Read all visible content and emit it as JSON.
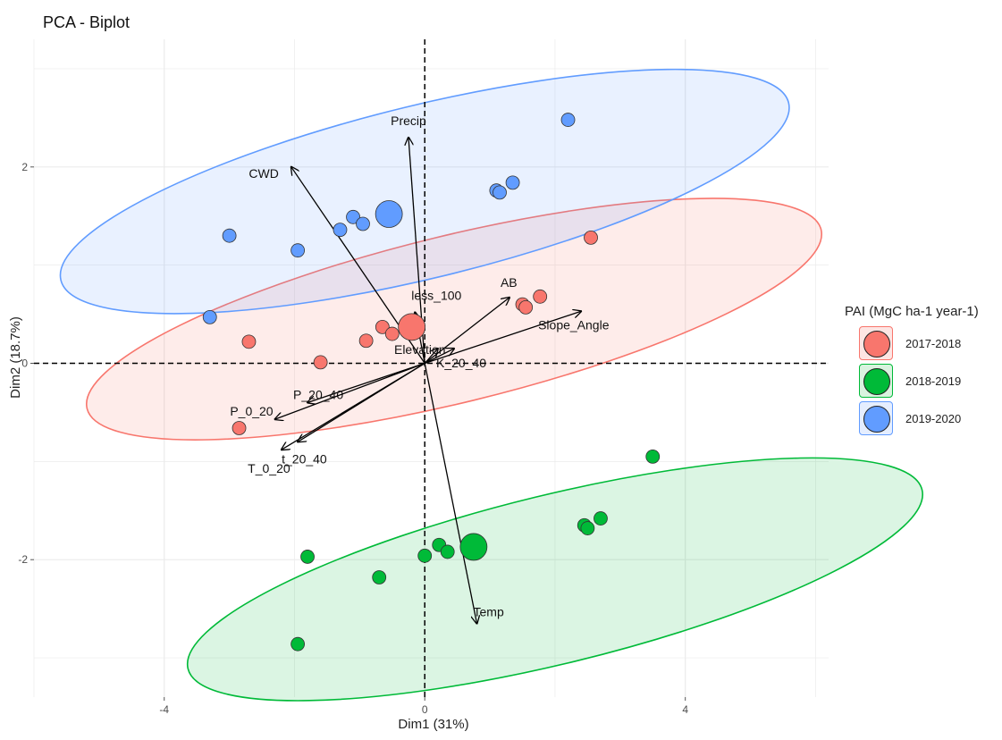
{
  "chart_data": {
    "type": "scatter",
    "title": "PCA - Biplot",
    "xlabel": "Dim1 (31%)",
    "ylabel": "Dim2 (18.7%)",
    "xlim": [
      -6.0,
      6.2
    ],
    "ylim": [
      -3.4,
      3.3
    ],
    "xticks": [
      -4,
      0,
      4
    ],
    "yticks": [
      -2,
      0,
      2
    ],
    "grid": true,
    "legend": {
      "title": "PAI (MgC ha-1 year-1)",
      "position": "right",
      "entries": [
        "2017-2018",
        "2018-2019",
        "2019-2020"
      ]
    },
    "colors": {
      "2017-2018": "#F8766D",
      "2018-2019": "#00BA38",
      "2019-2020": "#619CFF"
    },
    "series": [
      {
        "name": "2017-2018",
        "points": [
          [
            -2.7,
            0.22
          ],
          [
            -1.6,
            0.01
          ],
          [
            -0.9,
            0.23
          ],
          [
            -0.65,
            0.37
          ],
          [
            -0.5,
            0.3
          ],
          [
            -0.2,
            0.36
          ],
          [
            1.5,
            0.6
          ],
          [
            1.55,
            0.57
          ],
          [
            1.77,
            0.68
          ],
          [
            2.55,
            1.28
          ],
          [
            -2.85,
            -0.66
          ]
        ],
        "centroid": [
          -0.2,
          0.37
        ],
        "ellipse": {
          "center": [
            0.45,
            0.45
          ],
          "rx": 5.8,
          "ry": 0.85,
          "angle_deg": 13.7
        }
      },
      {
        "name": "2018-2019",
        "points": [
          [
            -1.8,
            -1.97
          ],
          [
            -0.7,
            -2.18
          ],
          [
            0.0,
            -1.96
          ],
          [
            0.22,
            -1.85
          ],
          [
            0.35,
            -1.92
          ],
          [
            2.45,
            -1.65
          ],
          [
            2.5,
            -1.68
          ],
          [
            2.7,
            -1.58
          ],
          [
            3.5,
            -0.95
          ],
          [
            -1.95,
            -2.86
          ]
        ],
        "centroid": [
          0.75,
          -1.87
        ],
        "ellipse": {
          "center": [
            2.0,
            -2.2
          ],
          "rx": 5.8,
          "ry": 0.86,
          "angle_deg": 13.7
        }
      },
      {
        "name": "2019-2020",
        "points": [
          [
            -3.0,
            1.3
          ],
          [
            -1.95,
            1.15
          ],
          [
            -1.3,
            1.36
          ],
          [
            -1.1,
            1.49
          ],
          [
            -0.95,
            1.42
          ],
          [
            1.1,
            1.76
          ],
          [
            1.15,
            1.74
          ],
          [
            1.35,
            1.84
          ],
          [
            2.2,
            2.48
          ],
          [
            -3.3,
            0.47
          ]
        ],
        "centroid": [
          -0.55,
          1.52
        ],
        "ellipse": {
          "center": [
            0.0,
            1.75
          ],
          "rx": 5.75,
          "ry": 0.88,
          "angle_deg": 13.7
        }
      }
    ],
    "variables": [
      {
        "name": "Precip",
        "x": -0.25,
        "y": 2.3
      },
      {
        "name": "CWD",
        "x": -2.05,
        "y": 2.0
      },
      {
        "name": "less_100",
        "x": -0.15,
        "y": 0.52
      },
      {
        "name": "AB",
        "x": 1.3,
        "y": 0.67
      },
      {
        "name": "Slope_Angle",
        "x": 2.4,
        "y": 0.53
      },
      {
        "name": "Elevation",
        "x": 0.2,
        "y": 0.15
      },
      {
        "name": "K_20_40",
        "x": 0.45,
        "y": 0.15
      },
      {
        "name": "P_20_40",
        "x": -1.8,
        "y": -0.4
      },
      {
        "name": "P_0_20",
        "x": -2.3,
        "y": -0.57
      },
      {
        "name": "t_20_40",
        "x": -1.95,
        "y": -0.8
      },
      {
        "name": "T_0_20",
        "x": -2.2,
        "y": -0.88
      },
      {
        "name": "Temp",
        "x": 0.8,
        "y": -2.65
      }
    ]
  }
}
